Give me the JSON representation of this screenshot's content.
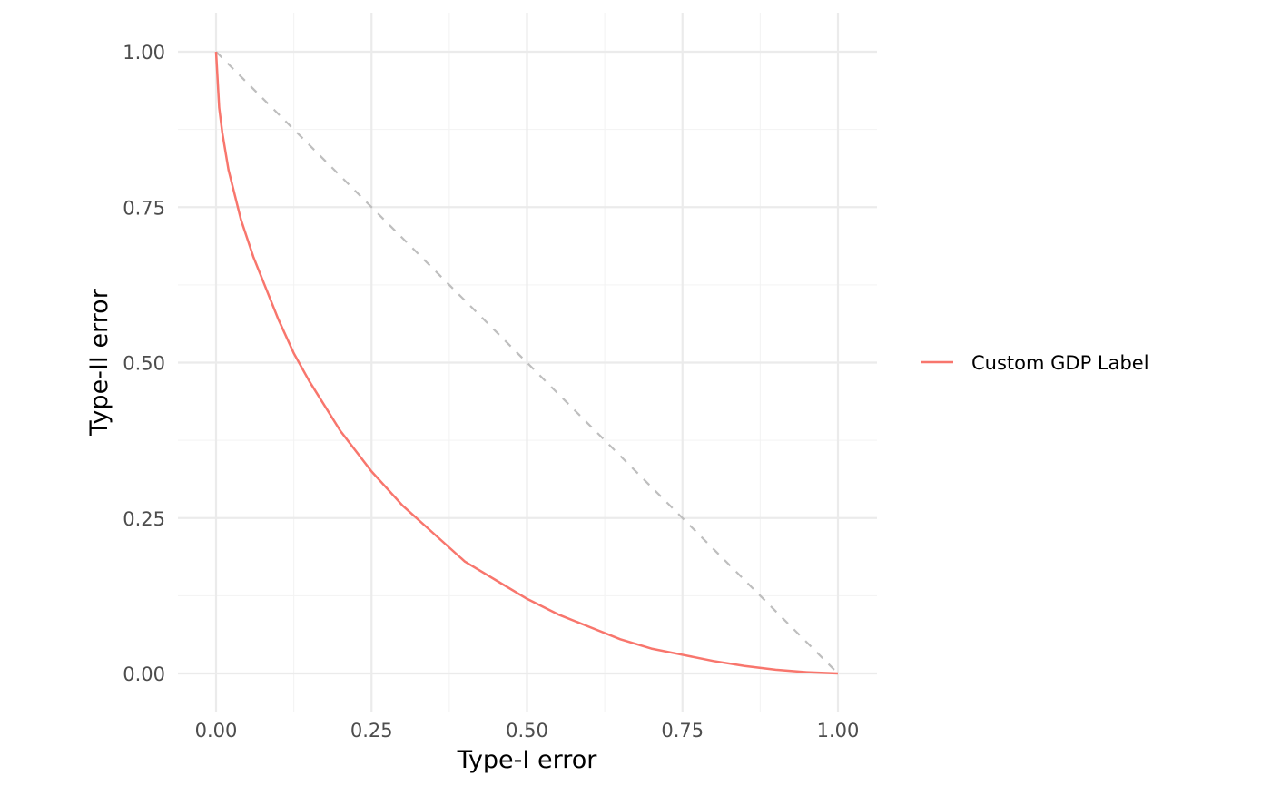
{
  "chart_data": {
    "type": "line",
    "title": "",
    "xlabel": "Type-I error",
    "ylabel": "Type-II error",
    "xlim": [
      -0.05,
      1.06
    ],
    "ylim": [
      -0.06,
      1.06
    ],
    "x_ticks": [
      0.0,
      0.25,
      0.5,
      0.75,
      1.0
    ],
    "x_tick_labels": [
      "0.00",
      "0.25",
      "0.50",
      "0.75",
      "1.00"
    ],
    "y_ticks": [
      0.0,
      0.25,
      0.5,
      0.75,
      1.0
    ],
    "y_tick_labels": [
      "0.00",
      "0.25",
      "0.50",
      "0.75",
      "1.00"
    ],
    "grid": true,
    "legend_position": "right",
    "series": [
      {
        "name": "Custom GDP Label",
        "color": "#f8766d",
        "style": "solid",
        "x": [
          0.0,
          0.005,
          0.01,
          0.02,
          0.03,
          0.04,
          0.05,
          0.06,
          0.08,
          0.1,
          0.125,
          0.15,
          0.175,
          0.2,
          0.25,
          0.3,
          0.35,
          0.4,
          0.45,
          0.5,
          0.55,
          0.6,
          0.65,
          0.7,
          0.75,
          0.8,
          0.85,
          0.9,
          0.95,
          1.0
        ],
        "y": [
          1.0,
          0.91,
          0.87,
          0.81,
          0.77,
          0.73,
          0.7,
          0.67,
          0.62,
          0.57,
          0.515,
          0.47,
          0.43,
          0.39,
          0.325,
          0.27,
          0.225,
          0.18,
          0.15,
          0.12,
          0.095,
          0.075,
          0.055,
          0.04,
          0.03,
          0.02,
          0.012,
          0.006,
          0.002,
          0.0
        ]
      }
    ],
    "reference_line": {
      "x": [
        0.0,
        1.0
      ],
      "y": [
        1.0,
        0.0
      ],
      "color": "#bebebe",
      "style": "dashed"
    }
  }
}
